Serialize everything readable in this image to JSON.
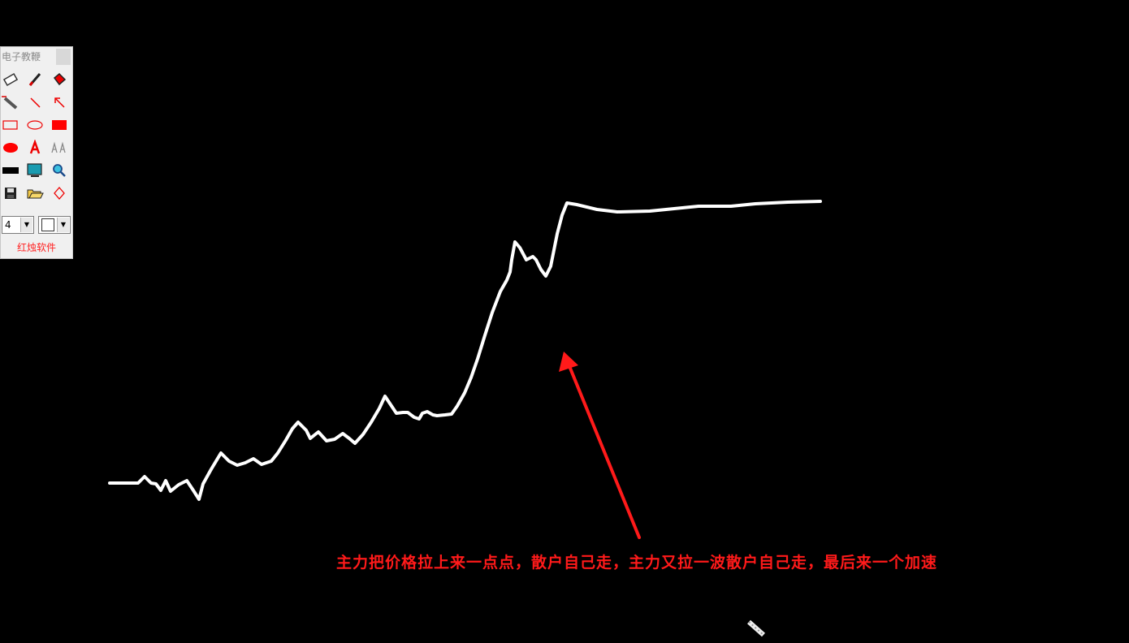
{
  "toolbox": {
    "title": "电子教鞭",
    "size_value": "4",
    "brand": "红烛软件",
    "tools": [
      "eraser-icon",
      "pen-icon",
      "fill-icon",
      "freehand-icon",
      "line-icon",
      "arrow-icon",
      "rectangle-icon",
      "ellipse-icon",
      "filled-rectangle-icon",
      "filled-ellipse-icon",
      "text-icon",
      "font-size-icon",
      "black-board-icon",
      "screen-icon",
      "magnifier-icon",
      "save-icon",
      "open-folder-icon",
      "erase-all-icon"
    ]
  },
  "annotation": {
    "caption": "主力把价格拉上来一点点，散户自己走，主力又拉一波散户自己走，最后来一个加速",
    "stroke_color": "#ffffff",
    "arrow_color": "#ff1a1a"
  }
}
